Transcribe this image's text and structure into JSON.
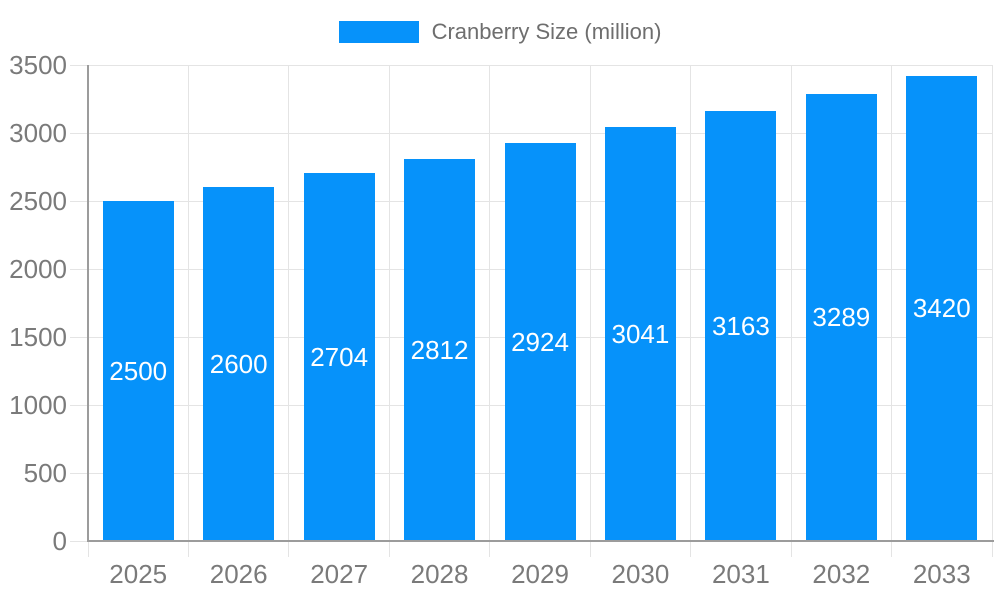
{
  "chart_data": {
    "type": "bar",
    "title": "",
    "legend": "Cranberry Size (million)",
    "legend_position": "top-center",
    "categories": [
      "2025",
      "2026",
      "2027",
      "2028",
      "2029",
      "2030",
      "2031",
      "2032",
      "2033"
    ],
    "values": [
      2500,
      2600,
      2704,
      2812,
      2924,
      3041,
      3163,
      3289,
      3420
    ],
    "xlabel": "",
    "ylabel": "",
    "ylim": [
      0,
      3500
    ],
    "y_ticks": [
      0,
      500,
      1000,
      1500,
      2000,
      2500,
      3000,
      3500
    ],
    "grid": true,
    "value_labels": "centered-inside-bars",
    "colors": {
      "bar": "#0692fa",
      "value_label_text": "#ffffff",
      "axis_text": "#7a7a7a",
      "legend_text": "#6e6e6e",
      "grid_line": "#e4e4e4",
      "axis_line": "#9c9c9c",
      "background": "#ffffff"
    }
  }
}
